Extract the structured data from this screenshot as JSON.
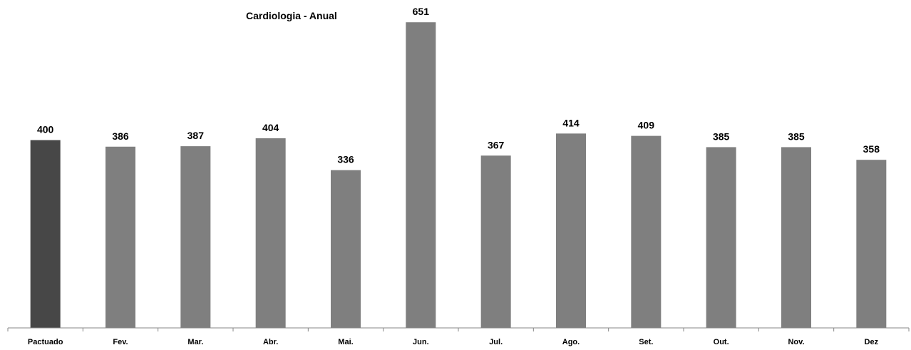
{
  "chart_data": {
    "type": "bar",
    "title": "Cardiologia - Anual",
    "xlabel": "",
    "ylabel": "",
    "categories": [
      "Pactuado",
      "Fev.",
      "Mar.",
      "Abr.",
      "Mai.",
      "Jun.",
      "Jul.",
      "Ago.",
      "Set.",
      "Out.",
      "Nov.",
      "Dez"
    ],
    "values": [
      400,
      386,
      387,
      404,
      336,
      651,
      367,
      414,
      409,
      385,
      385,
      358
    ],
    "ylim": [
      0,
      665
    ],
    "grid": false,
    "legend": "none",
    "data_labels": true,
    "colors": {
      "highlight_bar": "#474747",
      "bar": "#7f7f7f",
      "axis": "#878787",
      "text": "#000000"
    },
    "highlight_category": "Pactuado"
  }
}
